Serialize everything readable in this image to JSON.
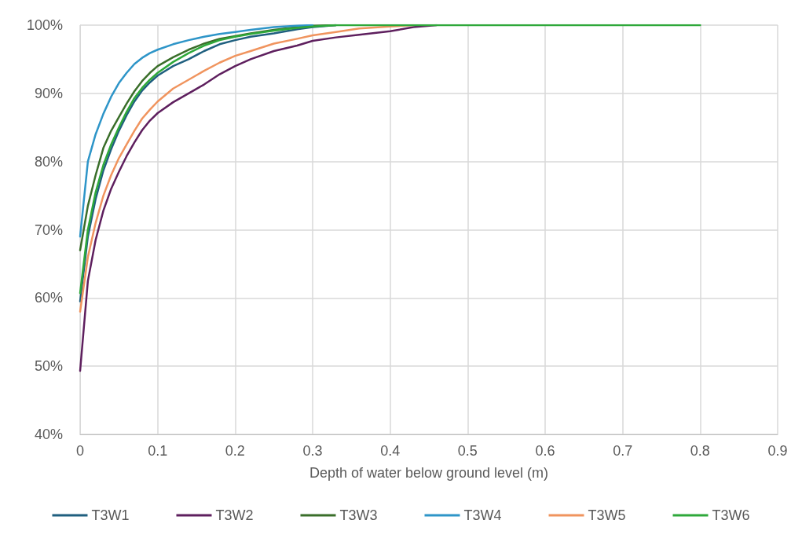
{
  "chart_data": {
    "type": "line",
    "xlabel": "Depth of water below ground level (m)",
    "series": [
      {
        "name": "T3W1",
        "color": "#1f5f7f",
        "x": [
          0,
          0.01,
          0.02,
          0.03,
          0.04,
          0.05,
          0.06,
          0.07,
          0.08,
          0.09,
          0.1,
          0.12,
          0.14,
          0.16,
          0.18,
          0.2,
          0.22,
          0.25,
          0.28,
          0.3,
          0.33
        ],
        "values": [
          59.5,
          69,
          74.5,
          78.7,
          81.8,
          84.5,
          86.8,
          88.8,
          90.4,
          91.6,
          92.6,
          94,
          95,
          96.2,
          97.2,
          97.8,
          98.3,
          98.8,
          99.4,
          99.7,
          100
        ]
      },
      {
        "name": "T3W2",
        "color": "#5e1f5e",
        "x": [
          0,
          0.01,
          0.02,
          0.03,
          0.04,
          0.05,
          0.06,
          0.07,
          0.08,
          0.09,
          0.1,
          0.12,
          0.14,
          0.16,
          0.18,
          0.2,
          0.22,
          0.25,
          0.28,
          0.3,
          0.33,
          0.36,
          0.4,
          0.43,
          0.46
        ],
        "values": [
          49.3,
          62.5,
          68.5,
          72.8,
          76,
          78.5,
          80.8,
          82.8,
          84.6,
          86,
          87.1,
          88.7,
          90,
          91.3,
          92.8,
          94,
          95,
          96.2,
          97,
          97.7,
          98.2,
          98.6,
          99.1,
          99.7,
          100
        ]
      },
      {
        "name": "T3W3",
        "color": "#3a6e2a",
        "x": [
          0,
          0.01,
          0.02,
          0.03,
          0.04,
          0.05,
          0.06,
          0.07,
          0.08,
          0.09,
          0.1,
          0.12,
          0.14,
          0.16,
          0.18,
          0.2,
          0.22,
          0.25,
          0.28,
          0.3,
          0.33
        ],
        "values": [
          67,
          73.5,
          78,
          82,
          84.5,
          86.5,
          88.5,
          90.3,
          91.8,
          93,
          94,
          95.3,
          96.4,
          97.3,
          98,
          98.4,
          98.8,
          99.3,
          99.7,
          99.9,
          100
        ]
      },
      {
        "name": "T3W4",
        "color": "#2e95c8",
        "x": [
          0,
          0.01,
          0.02,
          0.03,
          0.04,
          0.05,
          0.06,
          0.07,
          0.08,
          0.09,
          0.1,
          0.12,
          0.14,
          0.16,
          0.18,
          0.2,
          0.22,
          0.25,
          0.28,
          0.3
        ],
        "values": [
          69,
          80,
          84,
          87,
          89.5,
          91.5,
          93,
          94.3,
          95.2,
          95.9,
          96.4,
          97.2,
          97.8,
          98.3,
          98.7,
          99,
          99.3,
          99.7,
          99.9,
          100
        ]
      },
      {
        "name": "T3W5",
        "color": "#f0945e",
        "x": [
          0,
          0.01,
          0.02,
          0.03,
          0.04,
          0.05,
          0.06,
          0.07,
          0.08,
          0.09,
          0.1,
          0.12,
          0.14,
          0.16,
          0.18,
          0.2,
          0.22,
          0.25,
          0.28,
          0.3,
          0.33,
          0.36,
          0.4,
          0.43
        ],
        "values": [
          58,
          66,
          71,
          75,
          78,
          80.5,
          82.5,
          84.5,
          86.3,
          87.6,
          88.8,
          90.7,
          92,
          93.3,
          94.5,
          95.5,
          96.2,
          97.3,
          98,
          98.5,
          99,
          99.5,
          99.8,
          100
        ]
      },
      {
        "name": "T3W6",
        "color": "#2ea83a",
        "x": [
          0,
          0.01,
          0.02,
          0.03,
          0.04,
          0.05,
          0.06,
          0.07,
          0.08,
          0.09,
          0.1,
          0.12,
          0.14,
          0.16,
          0.18,
          0.2,
          0.22,
          0.25,
          0.28,
          0.3,
          0.33,
          0.36,
          0.4,
          0.43,
          0.46,
          0.5,
          0.6,
          0.7,
          0.8
        ],
        "values": [
          60.7,
          70,
          75.5,
          79.5,
          82.5,
          85,
          87.3,
          89.3,
          90.8,
          92,
          93,
          94.6,
          95.9,
          97,
          97.8,
          98.3,
          98.7,
          99.2,
          99.6,
          99.8,
          100,
          100,
          100,
          100,
          100,
          100,
          100,
          100,
          100
        ]
      }
    ],
    "xlim": [
      0,
      0.9
    ],
    "xticks": [
      0,
      0.1,
      0.2,
      0.3,
      0.4,
      0.5,
      0.6,
      0.7,
      0.8,
      0.9
    ],
    "ylim": [
      40,
      100
    ],
    "yticks": [
      {
        "value": 40,
        "label": "40%"
      },
      {
        "value": 50,
        "label": "50%"
      },
      {
        "value": 60,
        "label": "60%"
      },
      {
        "value": 70,
        "label": "70%"
      },
      {
        "value": 80,
        "label": "80%"
      },
      {
        "value": 90,
        "label": "90%"
      },
      {
        "value": 100,
        "label": "100%"
      }
    ],
    "grid": true,
    "legend": "bottom",
    "marker": "none",
    "line_style": "solid"
  }
}
